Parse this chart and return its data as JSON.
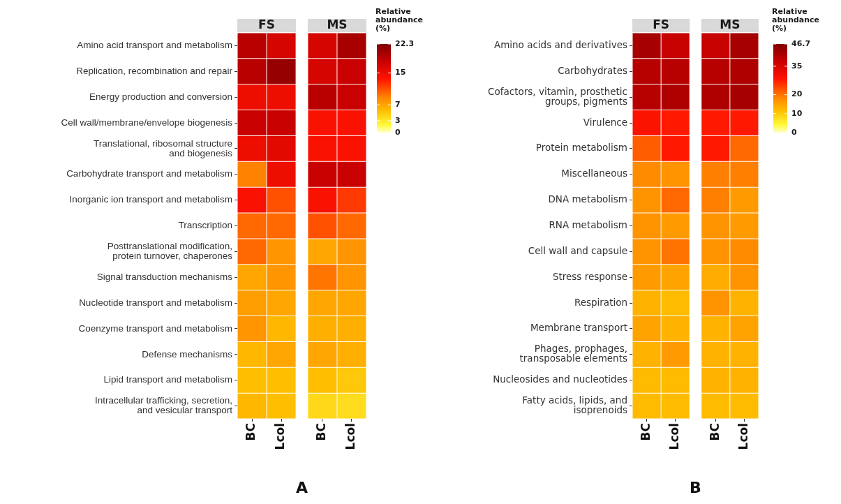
{
  "chart_data": [
    {
      "type": "heatmap",
      "title": "A",
      "annotations": [
        "FS",
        "MS"
      ],
      "categories": [
        "BC",
        "Lcol",
        "BC",
        "Lcol"
      ],
      "y_categories": [
        "Amino acid transport and metabolism",
        "Replication, recombination and repair",
        "Energy production and conversion",
        "Cell wall/membrane/envelope biogenesis",
        "Translational, ribosomal structure\nand biogenesis",
        "Carbohydrate transport and metabolism",
        "Inorganic ion transport and metabolism",
        "Transcription",
        "Posttranslational modification,\nprotein turnover, chaperones",
        "Signal transduction mechanisms",
        "Nucleotide transport and metabolism",
        "Coenzyme transport and metabolism",
        "Defense mechanisms",
        "Lipid transport and metabolism",
        "Intracellular trafficking, secretion,\nand vesicular transport"
      ],
      "cells": [
        [
          19,
          17,
          17,
          20
        ],
        [
          19,
          21,
          17,
          18
        ],
        [
          15,
          15,
          19,
          18
        ],
        [
          18,
          18,
          14,
          14
        ],
        [
          15,
          16,
          14,
          14
        ],
        [
          9,
          15,
          18,
          18
        ],
        [
          14,
          11,
          14,
          12
        ],
        [
          10,
          10,
          11,
          10
        ],
        [
          10,
          8,
          7,
          8
        ],
        [
          7,
          8,
          9.5,
          8
        ],
        [
          7.5,
          7,
          7,
          7
        ],
        [
          8,
          6,
          6.5,
          6.5
        ],
        [
          6,
          7,
          7,
          6.5
        ],
        [
          5.5,
          5.5,
          5.5,
          5
        ],
        [
          6,
          5.5,
          4,
          3.8
        ]
      ],
      "clim": [
        0,
        22.3
      ],
      "cticks": [
        0,
        3,
        7,
        15,
        22.3
      ],
      "clabel": "Relative\nabundance\n(%)"
    },
    {
      "type": "heatmap",
      "title": "B",
      "annotations": [
        "FS",
        "MS"
      ],
      "categories": [
        "BC",
        "Lcol",
        "BC",
        "Lcol"
      ],
      "y_categories": [
        "Amino acids and derivatives",
        "Carbohydrates",
        "Cofactors, vitamin, prosthetic\ngroups, pigments",
        "Virulence",
        "Protein metabolism",
        "Miscellaneous",
        "DNA metabolism",
        "RNA metabolism",
        "Cell wall and capsule",
        "Stress response",
        "Respiration",
        "Membrane transport",
        "Phages, prophages,\ntransposable elements",
        "Nucleosides and nucleotides",
        "Fatty acids, lipids, and\nisoprenoids"
      ],
      "cells": [
        [
          42,
          38,
          38,
          42
        ],
        [
          40,
          40,
          40,
          41
        ],
        [
          40,
          41,
          41,
          42
        ],
        [
          29,
          28,
          28,
          28
        ],
        [
          22,
          28,
          28,
          21
        ],
        [
          18,
          17,
          19,
          19
        ],
        [
          17,
          21,
          19,
          16
        ],
        [
          17,
          16,
          17,
          16
        ],
        [
          17,
          20,
          17,
          18
        ],
        [
          16,
          15,
          14,
          17
        ],
        [
          13,
          12,
          17,
          13
        ],
        [
          15,
          13,
          13,
          15
        ],
        [
          13,
          16,
          13,
          13
        ],
        [
          12,
          12,
          13,
          13
        ],
        [
          12,
          12,
          12,
          12
        ]
      ],
      "clim": [
        0,
        46.7
      ],
      "cticks": [
        0,
        10,
        20,
        35,
        46.7
      ],
      "clabel": "Relative\nabundance\n(%)"
    }
  ]
}
